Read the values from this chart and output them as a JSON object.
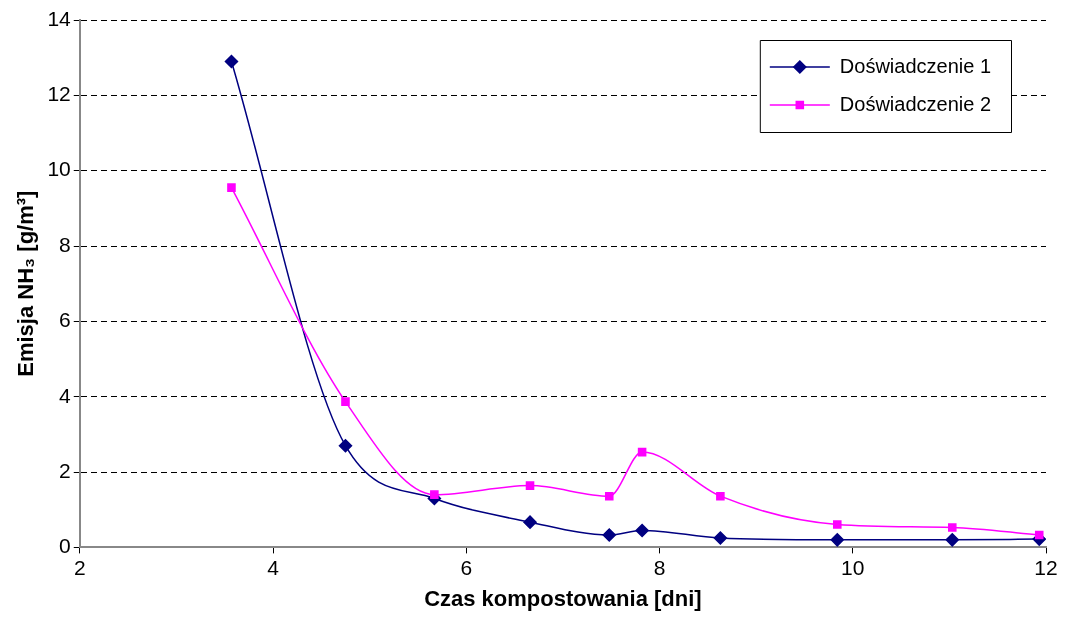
{
  "chart_data": {
    "type": "line",
    "xlabel": "Czas kompostowania [dni]",
    "ylabel": "Emisja NH₃ [g/m³]",
    "xlim": [
      2,
      12
    ],
    "xticks": [
      2,
      4,
      6,
      8,
      10,
      12
    ],
    "ylim": [
      0,
      14
    ],
    "yticks": [
      0,
      2,
      4,
      6,
      8,
      10,
      12,
      14
    ],
    "grid": "y",
    "legend": "top right",
    "line_style": "solid",
    "series": [
      {
        "name": "Doświadczenie 1",
        "color": "#000080",
        "marker": "diamond",
        "x": [
          3.57,
          4.75,
          5.67,
          6.66,
          7.48,
          7.82,
          8.63,
          9.84,
          11.03,
          11.93
        ],
        "values": [
          12.9,
          2.7,
          1.3,
          0.67,
          0.33,
          0.45,
          0.25,
          0.2,
          0.2,
          0.22
        ]
      },
      {
        "name": "Doświadczenie 2",
        "color": "#ff00ff",
        "marker": "square",
        "x": [
          3.57,
          4.75,
          5.67,
          6.66,
          7.48,
          7.82,
          8.63,
          9.84,
          11.03,
          11.93
        ],
        "values": [
          9.55,
          3.87,
          1.4,
          1.64,
          1.36,
          2.53,
          1.36,
          0.61,
          0.53,
          0.33
        ]
      }
    ]
  }
}
